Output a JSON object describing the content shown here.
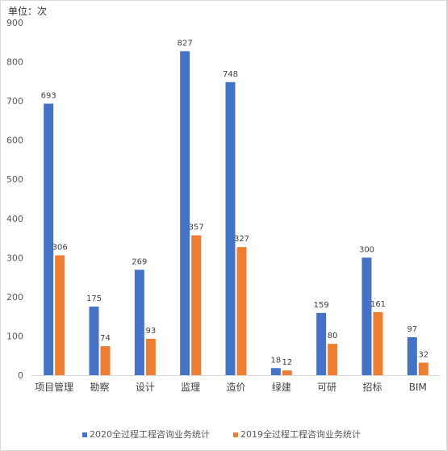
{
  "unit_label": "单位：次",
  "chart_data": {
    "type": "bar",
    "categories": [
      "项目管理",
      "勘察",
      "设计",
      "监理",
      "造价",
      "绿建",
      "可研",
      "招标",
      "BIM"
    ],
    "series": [
      {
        "name": "2020全过程工程咨询业务统计",
        "color": "#4472c4",
        "values": [
          693,
          175,
          269,
          827,
          748,
          18,
          159,
          300,
          97
        ]
      },
      {
        "name": "2019全过程工程咨询业务统计",
        "color": "#ed7d31",
        "values": [
          306,
          74,
          93,
          357,
          327,
          12,
          80,
          161,
          32
        ]
      }
    ],
    "ylim": [
      0,
      900
    ],
    "yticks": [
      0,
      100,
      200,
      300,
      400,
      500,
      600,
      700,
      800,
      900
    ],
    "grid": false,
    "legend": "bottom-center",
    "title": "",
    "xlabel": "",
    "ylabel": ""
  }
}
